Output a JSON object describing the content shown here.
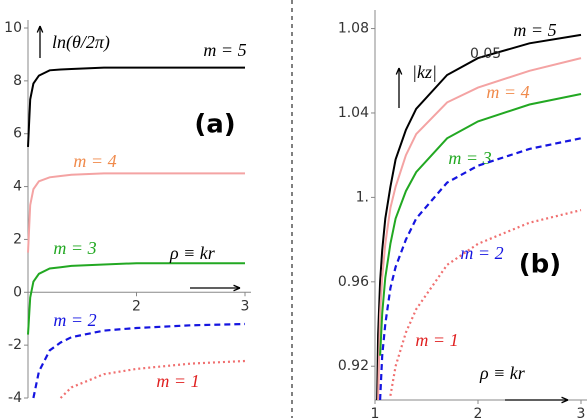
{
  "chart_data": [
    {
      "type": "line",
      "title": "(a)",
      "y_label": "ln(θ/2π)",
      "x_label": "ρ ≡ kr",
      "x": [
        1.0,
        1.02,
        1.05,
        1.1,
        1.2,
        1.3,
        1.4,
        1.7,
        2,
        2.5,
        3
      ],
      "xlim": [
        1,
        3
      ],
      "xticks": [
        2,
        3
      ],
      "ylim": [
        -4,
        10
      ],
      "yticks": [
        10,
        8,
        6,
        4,
        2,
        0,
        -2,
        -4
      ],
      "series": [
        {
          "name": "m = 5",
          "color": "#000000",
          "label_color": "#000000",
          "dash": "solid",
          "values": [
            5.5,
            7.3,
            7.9,
            8.2,
            8.4,
            8.43,
            8.45,
            8.5,
            8.5,
            8.5,
            8.5
          ]
        },
        {
          "name": "m = 4",
          "color": "#f4a3a3",
          "label_color": "#f08a4b",
          "dash": "solid",
          "values": [
            1.5,
            3.3,
            3.9,
            4.2,
            4.35,
            4.4,
            4.45,
            4.5,
            4.5,
            4.5,
            4.5
          ]
        },
        {
          "name": "m = 3",
          "color": "#22a822",
          "label_color": "#22a822",
          "dash": "solid",
          "values": [
            -1.6,
            -0.2,
            0.4,
            0.7,
            0.9,
            0.95,
            1.0,
            1.05,
            1.1,
            1.1,
            1.1
          ]
        },
        {
          "name": "m = 2",
          "color": "#1515e0",
          "label_color": "#1515e0",
          "dash": "dashed",
          "values": [
            null,
            null,
            -4,
            -3.0,
            -2.2,
            -1.9,
            -1.7,
            -1.45,
            -1.35,
            -1.25,
            -1.2
          ]
        },
        {
          "name": "m = 1",
          "color": "#f07070",
          "label_color": "#e02020",
          "dash": "dotted",
          "values": [
            null,
            null,
            null,
            null,
            null,
            -4,
            -3.6,
            -3.1,
            -2.9,
            -2.7,
            -2.6
          ]
        }
      ]
    },
    {
      "type": "line",
      "title": "(b)",
      "y_label": "|kz|",
      "y_label_exponent": "0.05",
      "x_label": "ρ ≡ kr",
      "x": [
        1.02,
        1.03,
        1.05,
        1.07,
        1.1,
        1.15,
        1.2,
        1.3,
        1.4,
        1.7,
        2,
        2.5,
        3
      ],
      "xlim": [
        1,
        3
      ],
      "xticks": [
        1,
        2,
        3
      ],
      "ylim": [
        0.904,
        1.085
      ],
      "yticks": [
        1.08,
        1.04,
        {
          "value": 1,
          "label": "1."
        },
        0.96,
        0.92
      ],
      "series": [
        {
          "name": "m = 5",
          "color": "#000000",
          "label_color": "#000000",
          "dash": "solid",
          "values": [
            0.904,
            0.935,
            0.96,
            0.975,
            0.99,
            1.005,
            1.018,
            1.032,
            1.042,
            1.058,
            1.066,
            1.073,
            1.077
          ]
        },
        {
          "name": "m = 4",
          "color": "#f4a3a3",
          "label_color": "#f08a4b",
          "dash": "solid",
          "values": [
            null,
            0.904,
            0.945,
            0.962,
            0.978,
            0.995,
            1.005,
            1.02,
            1.03,
            1.045,
            1.052,
            1.06,
            1.066
          ]
        },
        {
          "name": "m = 3",
          "color": "#22a822",
          "label_color": "#22a822",
          "dash": "solid",
          "values": [
            null,
            null,
            0.925,
            0.945,
            0.962,
            0.978,
            0.99,
            1.003,
            1.012,
            1.028,
            1.036,
            1.044,
            1.049
          ]
        },
        {
          "name": "m = 2",
          "color": "#1515e0",
          "label_color": "#1515e0",
          "dash": "dashed",
          "values": [
            null,
            null,
            0.904,
            0.925,
            0.94,
            0.957,
            0.967,
            0.98,
            0.99,
            1.007,
            1.015,
            1.023,
            1.028
          ]
        },
        {
          "name": "m = 1",
          "color": "#f07070",
          "label_color": "#e02020",
          "dash": "dotted",
          "values": [
            null,
            null,
            null,
            null,
            null,
            0.906,
            0.92,
            0.936,
            0.947,
            0.968,
            0.978,
            0.988,
            0.994
          ]
        }
      ]
    }
  ]
}
